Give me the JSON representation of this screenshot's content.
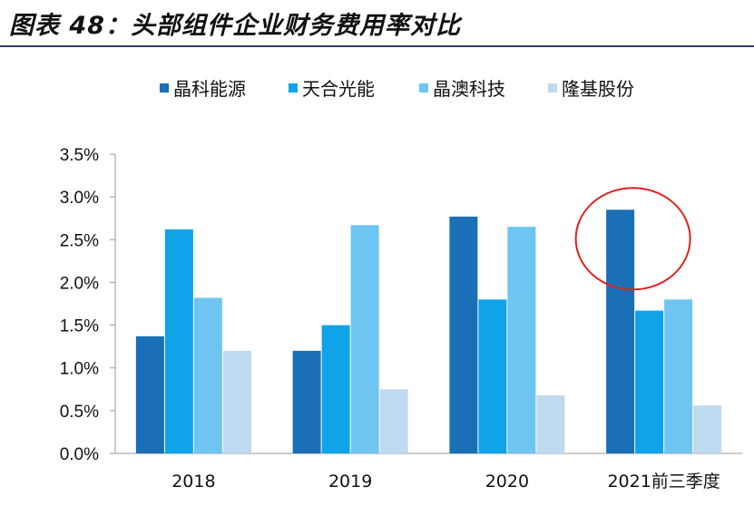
{
  "figure": {
    "title": "图表 48：头部组件企业财务费用率对比"
  },
  "chart_data": {
    "type": "bar",
    "title": "图表 48：头部组件企业财务费用率对比",
    "xlabel": "",
    "ylabel": "",
    "categories": [
      "2018",
      "2019",
      "2020",
      "2021前三季度"
    ],
    "series": [
      {
        "name": "晶科能源",
        "color": "#1a6fb7",
        "values": [
          1.37,
          1.2,
          2.77,
          2.85
        ]
      },
      {
        "name": "天合光能",
        "color": "#10a3e8",
        "values": [
          2.62,
          1.5,
          1.8,
          1.67
        ]
      },
      {
        "name": "晶澳科技",
        "color": "#6ec5f1",
        "values": [
          1.82,
          2.67,
          2.65,
          1.8
        ]
      },
      {
        "name": "隆基股份",
        "color": "#bfd9ef",
        "values": [
          1.2,
          0.75,
          0.68,
          0.56
        ]
      }
    ],
    "ylim": [
      0,
      3.5
    ],
    "yticks": [
      "0.0%",
      "0.5%",
      "1.0%",
      "1.5%",
      "2.0%",
      "2.5%",
      "3.0%",
      "3.5%"
    ],
    "grid": false,
    "legend": "top",
    "annotation": {
      "type": "circle",
      "series": "晶科能源",
      "category": "2021前三季度",
      "color": "#e02020"
    }
  }
}
